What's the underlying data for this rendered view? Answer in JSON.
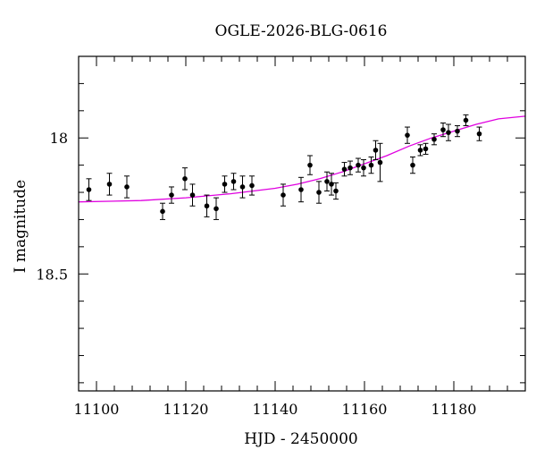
{
  "chart_data": {
    "type": "scatter",
    "title": "OGLE-2026-BLG-0616",
    "xlabel": "HJD - 2450000",
    "ylabel": "I magnitude",
    "xlim": [
      11096,
      11196
    ],
    "ylim": [
      18.93,
      17.7
    ],
    "y_inverted": true,
    "grid": false,
    "x_major_ticks": [
      11100,
      11120,
      11140,
      11160,
      11180
    ],
    "x_tick_labels": [
      "11100",
      "11120",
      "11140",
      "11160",
      "11180"
    ],
    "y_major_ticks": [
      18.0,
      18.5
    ],
    "y_tick_labels": [
      "18",
      "18.5"
    ],
    "y_minor_step": 0.1,
    "x_minor_step": 4,
    "colors": {
      "points": "#000000",
      "model": "#e000e0",
      "frame": "#000000"
    },
    "points": [
      {
        "x": 11098.3,
        "y": 18.19,
        "err": 0.04
      },
      {
        "x": 11102.9,
        "y": 18.17,
        "err": 0.04
      },
      {
        "x": 11106.8,
        "y": 18.18,
        "err": 0.04
      },
      {
        "x": 11114.8,
        "y": 18.27,
        "err": 0.03
      },
      {
        "x": 11116.8,
        "y": 18.21,
        "err": 0.03
      },
      {
        "x": 11119.8,
        "y": 18.15,
        "err": 0.04
      },
      {
        "x": 11121.5,
        "y": 18.21,
        "err": 0.04
      },
      {
        "x": 11124.7,
        "y": 18.25,
        "err": 0.04
      },
      {
        "x": 11126.8,
        "y": 18.26,
        "err": 0.04
      },
      {
        "x": 11128.7,
        "y": 18.17,
        "err": 0.03
      },
      {
        "x": 11130.7,
        "y": 18.16,
        "err": 0.03
      },
      {
        "x": 11132.7,
        "y": 18.18,
        "err": 0.04
      },
      {
        "x": 11134.8,
        "y": 18.175,
        "err": 0.035
      },
      {
        "x": 11141.8,
        "y": 18.21,
        "err": 0.04
      },
      {
        "x": 11145.8,
        "y": 18.19,
        "err": 0.045
      },
      {
        "x": 11147.8,
        "y": 18.1,
        "err": 0.035
      },
      {
        "x": 11149.8,
        "y": 18.2,
        "err": 0.04
      },
      {
        "x": 11151.6,
        "y": 18.16,
        "err": 0.035
      },
      {
        "x": 11152.6,
        "y": 18.17,
        "err": 0.04
      },
      {
        "x": 11153.6,
        "y": 18.195,
        "err": 0.03
      },
      {
        "x": 11155.5,
        "y": 18.115,
        "err": 0.025
      },
      {
        "x": 11156.8,
        "y": 18.11,
        "err": 0.025
      },
      {
        "x": 11158.6,
        "y": 18.1,
        "err": 0.025
      },
      {
        "x": 11159.8,
        "y": 18.11,
        "err": 0.03
      },
      {
        "x": 11161.5,
        "y": 18.1,
        "err": 0.03
      },
      {
        "x": 11162.5,
        "y": 18.045,
        "err": 0.035
      },
      {
        "x": 11163.5,
        "y": 18.09,
        "err": 0.07
      },
      {
        "x": 11169.6,
        "y": 17.99,
        "err": 0.03
      },
      {
        "x": 11170.8,
        "y": 18.1,
        "err": 0.03
      },
      {
        "x": 11172.5,
        "y": 18.045,
        "err": 0.02
      },
      {
        "x": 11173.7,
        "y": 18.04,
        "err": 0.02
      },
      {
        "x": 11175.6,
        "y": 18.005,
        "err": 0.02
      },
      {
        "x": 11177.6,
        "y": 17.97,
        "err": 0.025
      },
      {
        "x": 11178.8,
        "y": 17.98,
        "err": 0.03
      },
      {
        "x": 11180.8,
        "y": 17.975,
        "err": 0.02
      },
      {
        "x": 11182.7,
        "y": 17.935,
        "err": 0.02
      },
      {
        "x": 11185.7,
        "y": 17.985,
        "err": 0.025
      }
    ],
    "model": {
      "name": "",
      "x": [
        11096,
        11110,
        11120,
        11130,
        11140,
        11145,
        11150,
        11155,
        11160,
        11165,
        11170,
        11175,
        11180,
        11185,
        11190,
        11196
      ],
      "y": [
        18.235,
        18.23,
        18.22,
        18.205,
        18.185,
        18.17,
        18.15,
        18.125,
        18.095,
        18.065,
        18.03,
        18.0,
        17.975,
        17.95,
        17.93,
        17.92
      ]
    }
  }
}
